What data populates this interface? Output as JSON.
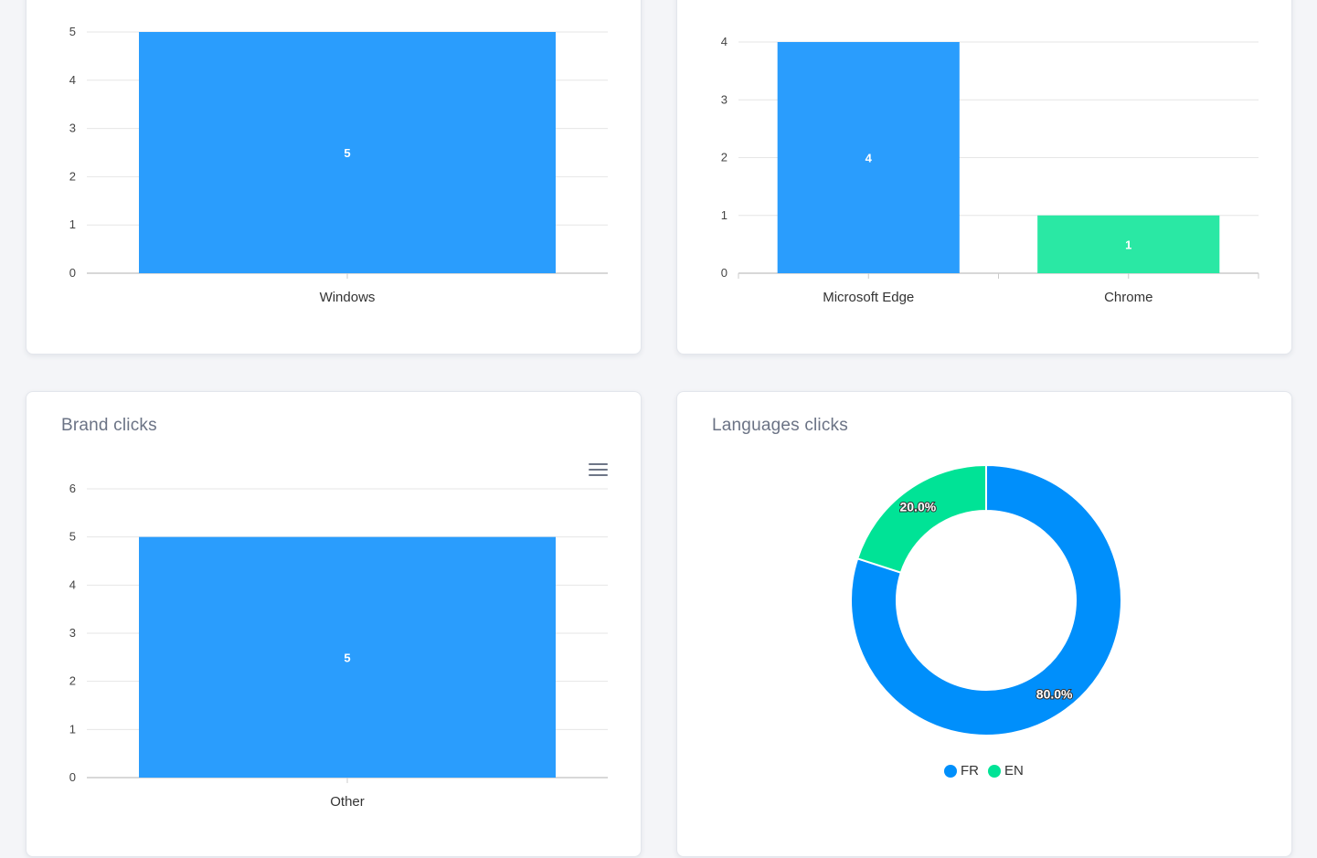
{
  "colors": {
    "blue": "#2a9dfd",
    "green": "#2ae8a4",
    "donut_blue": "#008ffb",
    "donut_green": "#00e396",
    "grid": "#e6e6e6",
    "axis": "#cccccc"
  },
  "cards": {
    "os": {
      "title": ""
    },
    "browser": {
      "title": ""
    },
    "brand": {
      "title": "Brand clicks",
      "menu_icon": "hamburger-menu-icon"
    },
    "languages": {
      "title": "Languages clicks"
    }
  },
  "chart_data": [
    {
      "id": "os",
      "type": "bar",
      "categories": [
        "Windows"
      ],
      "values": [
        5
      ],
      "bar_colors": [
        "#2a9dfd"
      ],
      "ylim": [
        0,
        5
      ],
      "yticks": [
        0,
        1,
        2,
        3,
        4,
        5
      ],
      "data_labels": [
        "5"
      ],
      "title": "",
      "xlabel": "",
      "ylabel": "",
      "grid": true
    },
    {
      "id": "browser",
      "type": "bar",
      "categories": [
        "Microsoft Edge",
        "Chrome"
      ],
      "values": [
        4,
        1
      ],
      "bar_colors": [
        "#2a9dfd",
        "#2ae8a4"
      ],
      "ylim": [
        0,
        4
      ],
      "yticks": [
        0,
        1,
        2,
        3,
        4
      ],
      "data_labels": [
        "4",
        "1"
      ],
      "title": "",
      "xlabel": "",
      "ylabel": "",
      "grid": true
    },
    {
      "id": "brand",
      "type": "bar",
      "categories": [
        "Other"
      ],
      "values": [
        5
      ],
      "bar_colors": [
        "#2a9dfd"
      ],
      "ylim": [
        0,
        6
      ],
      "yticks": [
        0,
        1,
        2,
        3,
        4,
        5,
        6
      ],
      "data_labels": [
        "5"
      ],
      "title": "Brand clicks",
      "xlabel": "",
      "ylabel": "",
      "grid": true
    },
    {
      "id": "languages",
      "type": "pie",
      "donut": true,
      "labels": [
        "FR",
        "EN"
      ],
      "values": [
        80,
        20
      ],
      "slice_colors": [
        "#008ffb",
        "#00e396"
      ],
      "data_labels": [
        "80.0%",
        "20.0%"
      ],
      "title": "Languages clicks",
      "legend": "bottom"
    }
  ]
}
